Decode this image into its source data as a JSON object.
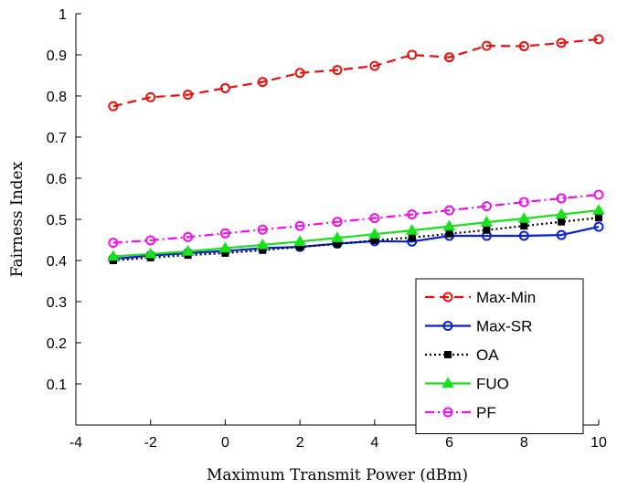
{
  "chart_data": {
    "type": "line",
    "xlabel": "Maximum Transmit Power (dBm)",
    "ylabel": "Fairness Index",
    "xlim": [
      -4,
      10
    ],
    "ylim": [
      0,
      1
    ],
    "xticks": [
      -4,
      -2,
      0,
      2,
      4,
      6,
      8,
      10
    ],
    "yticks": [
      0.1,
      0.2,
      0.3,
      0.4,
      0.5,
      0.6,
      0.7,
      0.8,
      0.9,
      1
    ],
    "grid": false,
    "legend_position": "bottom-right",
    "x": [
      -3,
      -2,
      -1,
      0,
      1,
      2,
      3,
      4,
      5,
      6,
      7,
      8,
      9,
      10
    ],
    "series": [
      {
        "name": "Max-Min",
        "color": "#e8120c",
        "line": "dashed",
        "marker": "circle",
        "values": [
          0.775,
          0.797,
          0.803,
          0.819,
          0.834,
          0.856,
          0.863,
          0.873,
          0.9,
          0.894,
          0.922,
          0.921,
          0.929,
          0.938
        ]
      },
      {
        "name": "Max-SR",
        "color": "#0a1fd6",
        "line": "solid",
        "marker": "circle",
        "values": [
          0.404,
          0.412,
          0.418,
          0.423,
          0.43,
          0.433,
          0.441,
          0.447,
          0.446,
          0.46,
          0.46,
          0.46,
          0.462,
          0.482
        ]
      },
      {
        "name": "OA",
        "color": "#000000",
        "line": "dotted",
        "marker": "square",
        "values": [
          0.4,
          0.407,
          0.413,
          0.418,
          0.425,
          0.433,
          0.44,
          0.449,
          0.456,
          0.465,
          0.474,
          0.484,
          0.494,
          0.504
        ]
      },
      {
        "name": "FUO",
        "color": "#19e01a",
        "line": "solid",
        "marker": "triangle",
        "values": [
          0.41,
          0.416,
          0.422,
          0.43,
          0.438,
          0.446,
          0.455,
          0.464,
          0.473,
          0.483,
          0.493,
          0.502,
          0.512,
          0.522
        ]
      },
      {
        "name": "PF",
        "color": "#ee10e8",
        "line": "dashdot",
        "marker": "circle",
        "values": [
          0.443,
          0.449,
          0.457,
          0.466,
          0.475,
          0.484,
          0.494,
          0.503,
          0.512,
          0.522,
          0.532,
          0.542,
          0.551,
          0.56
        ]
      }
    ]
  }
}
